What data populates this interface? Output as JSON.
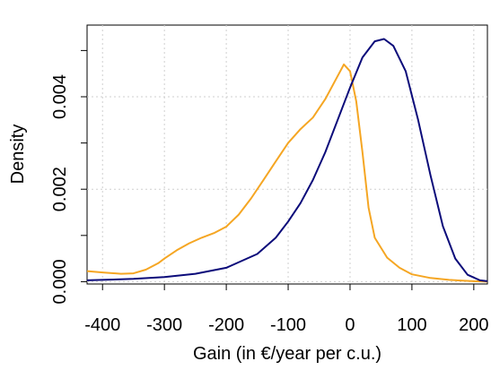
{
  "chart_data": {
    "type": "line",
    "title": "",
    "xlabel": "Gain (in €/year per c.u.)",
    "ylabel": "Density",
    "xlim": [
      -425,
      222
    ],
    "ylim": [
      -5e-05,
      0.00555
    ],
    "x_ticks": [
      -400,
      -300,
      -200,
      -100,
      0,
      100,
      200
    ],
    "x_tick_labels": [
      "-400",
      "-300",
      "-200",
      "-100",
      "0",
      "100",
      "200"
    ],
    "y_ticks": [
      0.0,
      0.002,
      0.004
    ],
    "y_tick_labels": [
      "0.000",
      "0.002",
      "0.004"
    ],
    "y_minor_ticks": [
      0.001,
      0.003,
      0.005
    ],
    "grid": true,
    "series": [
      {
        "color": "#F5A623",
        "x": [
          -425,
          -400,
          -370,
          -350,
          -330,
          -310,
          -300,
          -280,
          -260,
          -240,
          -220,
          -200,
          -180,
          -160,
          -140,
          -120,
          -100,
          -80,
          -60,
          -40,
          -20,
          -10,
          0,
          10,
          20,
          30,
          40,
          60,
          80,
          100,
          130,
          160,
          200,
          222
        ],
        "y": [
          0.00023,
          0.0002,
          0.00017,
          0.00018,
          0.00026,
          0.0004,
          0.0005,
          0.00068,
          0.00083,
          0.00095,
          0.00105,
          0.00119,
          0.00145,
          0.0018,
          0.0022,
          0.0026,
          0.003,
          0.0033,
          0.00355,
          0.00395,
          0.00445,
          0.0047,
          0.00455,
          0.0039,
          0.0028,
          0.0016,
          0.00095,
          0.00052,
          0.0003,
          0.00016,
          8e-05,
          4e-05,
          1e-05,
          0.0
        ]
      },
      {
        "color": "#0B0B7A",
        "x": [
          -425,
          -400,
          -350,
          -300,
          -250,
          -200,
          -150,
          -120,
          -100,
          -80,
          -60,
          -40,
          -20,
          0,
          20,
          40,
          55,
          70,
          90,
          110,
          130,
          150,
          170,
          190,
          210,
          222
        ],
        "y": [
          3e-05,
          4e-05,
          6e-05,
          0.0001,
          0.00017,
          0.0003,
          0.0006,
          0.00095,
          0.0013,
          0.0017,
          0.0022,
          0.0028,
          0.0035,
          0.0042,
          0.00485,
          0.0052,
          0.00525,
          0.0051,
          0.00455,
          0.0035,
          0.0023,
          0.0012,
          0.0005,
          0.00015,
          3e-05,
          1e-05
        ]
      }
    ]
  }
}
